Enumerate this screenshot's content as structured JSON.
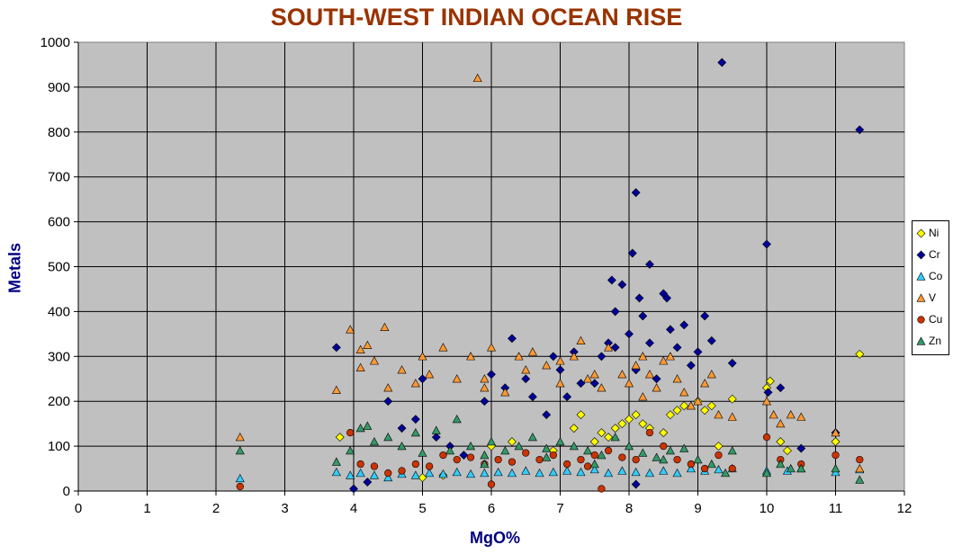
{
  "chart_data": {
    "type": "scatter",
    "title": "SOUTH-WEST INDIAN OCEAN RISE",
    "xlabel": "MgO%",
    "ylabel": "Metals",
    "xlim": [
      0,
      12
    ],
    "ylim": [
      0,
      1000
    ],
    "xticks": [
      "0",
      "1",
      "2",
      "3",
      "4",
      "5",
      "6",
      "7",
      "8",
      "9",
      "10",
      "11",
      "12"
    ],
    "yticks": [
      "0",
      "100",
      "200",
      "300",
      "400",
      "500",
      "600",
      "700",
      "800",
      "900",
      "1000"
    ],
    "grid": true,
    "legend": "right",
    "plot_bg": "#C0C0C0",
    "series": [
      {
        "name": "Ni",
        "marker": "diamond",
        "color": "#FFFF00",
        "x": [
          3.8,
          5.0,
          5.3,
          6.0,
          6.3,
          6.9,
          7.2,
          7.3,
          7.5,
          7.6,
          7.7,
          7.8,
          7.9,
          8.0,
          8.1,
          8.2,
          8.3,
          8.5,
          8.6,
          8.7,
          8.8,
          9.0,
          9.1,
          9.2,
          9.3,
          9.5,
          10.0,
          10.05,
          10.2,
          10.3,
          11.0,
          11.35
        ],
        "y": [
          120,
          30,
          35,
          100,
          110,
          90,
          140,
          170,
          110,
          130,
          120,
          140,
          150,
          160,
          170,
          150,
          140,
          130,
          170,
          180,
          190,
          200,
          180,
          190,
          100,
          205,
          230,
          245,
          110,
          90,
          110,
          305
        ]
      },
      {
        "name": "Cr",
        "marker": "diamond",
        "color": "#000099",
        "x": [
          3.75,
          4.0,
          4.2,
          4.5,
          4.7,
          4.9,
          5.0,
          5.2,
          5.4,
          5.6,
          5.9,
          6.0,
          6.2,
          6.3,
          6.5,
          6.6,
          6.8,
          6.9,
          7.0,
          7.1,
          7.2,
          7.3,
          7.5,
          7.6,
          7.7,
          7.75,
          7.8,
          7.9,
          8.0,
          8.05,
          8.1,
          8.15,
          8.2,
          8.3,
          8.4,
          8.5,
          8.55,
          8.6,
          8.7,
          8.8,
          8.9,
          9.0,
          9.1,
          9.2,
          9.35,
          9.5,
          10.0,
          10.02,
          10.2,
          10.5,
          11.0,
          11.35,
          8.1,
          7.8,
          8.3,
          8.1
        ],
        "y": [
          320,
          5,
          20,
          200,
          140,
          160,
          250,
          120,
          100,
          80,
          200,
          260,
          230,
          340,
          250,
          210,
          170,
          300,
          270,
          210,
          310,
          240,
          240,
          300,
          330,
          470,
          400,
          460,
          350,
          530,
          665,
          430,
          390,
          330,
          250,
          440,
          430,
          360,
          320,
          370,
          280,
          310,
          390,
          335,
          955,
          285,
          550,
          220,
          230,
          95,
          130,
          805,
          270,
          320,
          505,
          15
        ]
      },
      {
        "name": "Co",
        "marker": "triangle",
        "color": "#33CCFF",
        "x": [
          2.35,
          3.75,
          3.95,
          4.1,
          4.3,
          4.5,
          4.7,
          4.9,
          5.1,
          5.3,
          5.5,
          5.7,
          5.9,
          6.1,
          6.3,
          6.5,
          6.7,
          6.9,
          7.1,
          7.3,
          7.5,
          7.7,
          7.9,
          8.1,
          8.3,
          8.5,
          8.7,
          8.9,
          9.1,
          9.3,
          9.5,
          10.0,
          10.3,
          10.5,
          11.0,
          11.35
        ],
        "y": [
          28,
          42,
          35,
          40,
          35,
          30,
          38,
          35,
          40,
          38,
          42,
          38,
          40,
          42,
          40,
          45,
          40,
          42,
          45,
          42,
          48,
          40,
          45,
          42,
          40,
          45,
          40,
          50,
          45,
          48,
          50,
          45,
          45,
          50,
          42,
          48
        ]
      },
      {
        "name": "V",
        "marker": "triangle",
        "color": "#FF9933",
        "x": [
          2.35,
          3.75,
          3.95,
          4.1,
          4.2,
          4.3,
          4.45,
          4.5,
          4.7,
          4.9,
          5.0,
          5.1,
          5.3,
          5.5,
          5.7,
          5.8,
          5.9,
          6.0,
          6.2,
          6.4,
          6.6,
          6.8,
          7.0,
          7.2,
          7.3,
          7.4,
          7.5,
          7.7,
          7.9,
          8.0,
          8.1,
          8.2,
          8.3,
          8.4,
          8.5,
          8.6,
          8.7,
          8.8,
          9.0,
          9.1,
          9.2,
          9.3,
          9.5,
          10.0,
          10.1,
          10.2,
          10.35,
          10.5,
          11.0,
          11.35,
          4.1,
          5.9,
          6.5,
          7.0,
          7.6,
          8.2,
          8.9
        ],
        "y": [
          120,
          225,
          360,
          315,
          325,
          290,
          365,
          230,
          270,
          240,
          300,
          260,
          320,
          250,
          300,
          920,
          230,
          320,
          220,
          300,
          310,
          280,
          240,
          300,
          335,
          250,
          260,
          320,
          260,
          240,
          280,
          300,
          260,
          230,
          290,
          300,
          250,
          220,
          200,
          240,
          260,
          170,
          165,
          200,
          170,
          150,
          170,
          165,
          130,
          50,
          275,
          250,
          270,
          290,
          230,
          210,
          190
        ]
      },
      {
        "name": "Cu",
        "marker": "circle",
        "color": "#CC3300",
        "x": [
          2.35,
          3.95,
          4.1,
          4.3,
          4.5,
          4.7,
          4.9,
          5.1,
          5.3,
          5.5,
          5.7,
          5.9,
          6.1,
          6.3,
          6.5,
          6.7,
          6.9,
          7.1,
          7.3,
          7.5,
          7.6,
          7.7,
          7.9,
          8.1,
          8.3,
          8.5,
          8.7,
          8.9,
          9.1,
          9.3,
          9.5,
          10.0,
          10.2,
          10.5,
          11.0,
          11.35,
          6.0,
          7.4
        ],
        "y": [
          10,
          130,
          60,
          55,
          40,
          45,
          60,
          55,
          80,
          70,
          75,
          60,
          70,
          65,
          85,
          70,
          80,
          60,
          70,
          80,
          5,
          90,
          75,
          70,
          130,
          100,
          70,
          60,
          50,
          80,
          50,
          120,
          70,
          60,
          80,
          70,
          15,
          55
        ]
      },
      {
        "name": "Zn",
        "marker": "triangle",
        "color": "#339966",
        "x": [
          2.35,
          3.75,
          3.95,
          4.1,
          4.2,
          4.3,
          4.5,
          4.7,
          4.9,
          5.0,
          5.2,
          5.4,
          5.5,
          5.7,
          5.9,
          6.0,
          6.2,
          6.4,
          6.6,
          6.8,
          7.0,
          7.2,
          7.4,
          7.6,
          7.8,
          8.0,
          8.2,
          8.4,
          8.6,
          8.8,
          9.0,
          9.2,
          9.4,
          9.5,
          10.0,
          10.2,
          10.35,
          10.5,
          11.0,
          11.35,
          5.9,
          6.8,
          7.5,
          8.5
        ],
        "y": [
          90,
          65,
          90,
          140,
          145,
          110,
          120,
          100,
          130,
          85,
          135,
          90,
          160,
          100,
          80,
          110,
          90,
          100,
          120,
          95,
          110,
          100,
          90,
          80,
          120,
          100,
          85,
          75,
          90,
          95,
          70,
          60,
          40,
          90,
          40,
          60,
          50,
          50,
          50,
          25,
          60,
          75,
          60,
          70
        ]
      }
    ]
  }
}
